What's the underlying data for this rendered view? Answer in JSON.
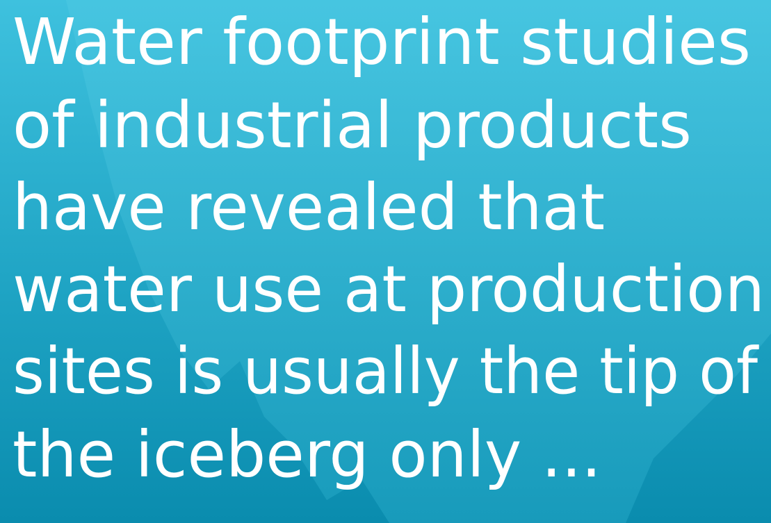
{
  "text": {
    "lines": [
      "Water footprint studies",
      "of industrial products",
      "have revealed that",
      "water use at production",
      "sites is usually the tip of",
      "the iceberg only ..."
    ]
  }
}
